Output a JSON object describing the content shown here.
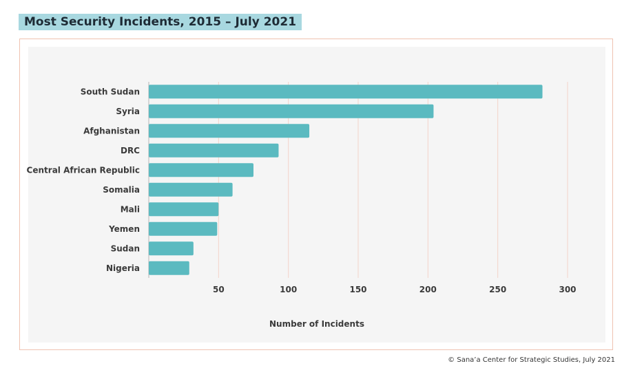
{
  "title": "Most Security Incidents, 2015 – July 2021",
  "credit": "© Sana’a Center for Strategic Studies, July 2021",
  "chart_data": {
    "type": "bar",
    "orientation": "horizontal",
    "title": "Most Security Incidents, 2015 – July 2021",
    "xlabel": "Number of Incidents",
    "ylabel": "",
    "categories": [
      "South Sudan",
      "Syria",
      "Afghanistan",
      "DRC",
      "Central African Republic",
      "Somalia",
      "Mali",
      "Yemen",
      "Sudan",
      "Nigeria"
    ],
    "values": [
      282,
      204,
      115,
      93,
      75,
      60,
      50,
      49,
      32,
      29
    ],
    "xticks": [
      50,
      100,
      150,
      200,
      250,
      300
    ],
    "xlim": [
      0,
      300
    ],
    "grid": true,
    "legend": "none",
    "colors": {
      "bar": "#5bbac0",
      "grid": "#f3d3c9",
      "axis": "#b5b5b5",
      "text": "#3a3a3a"
    }
  }
}
